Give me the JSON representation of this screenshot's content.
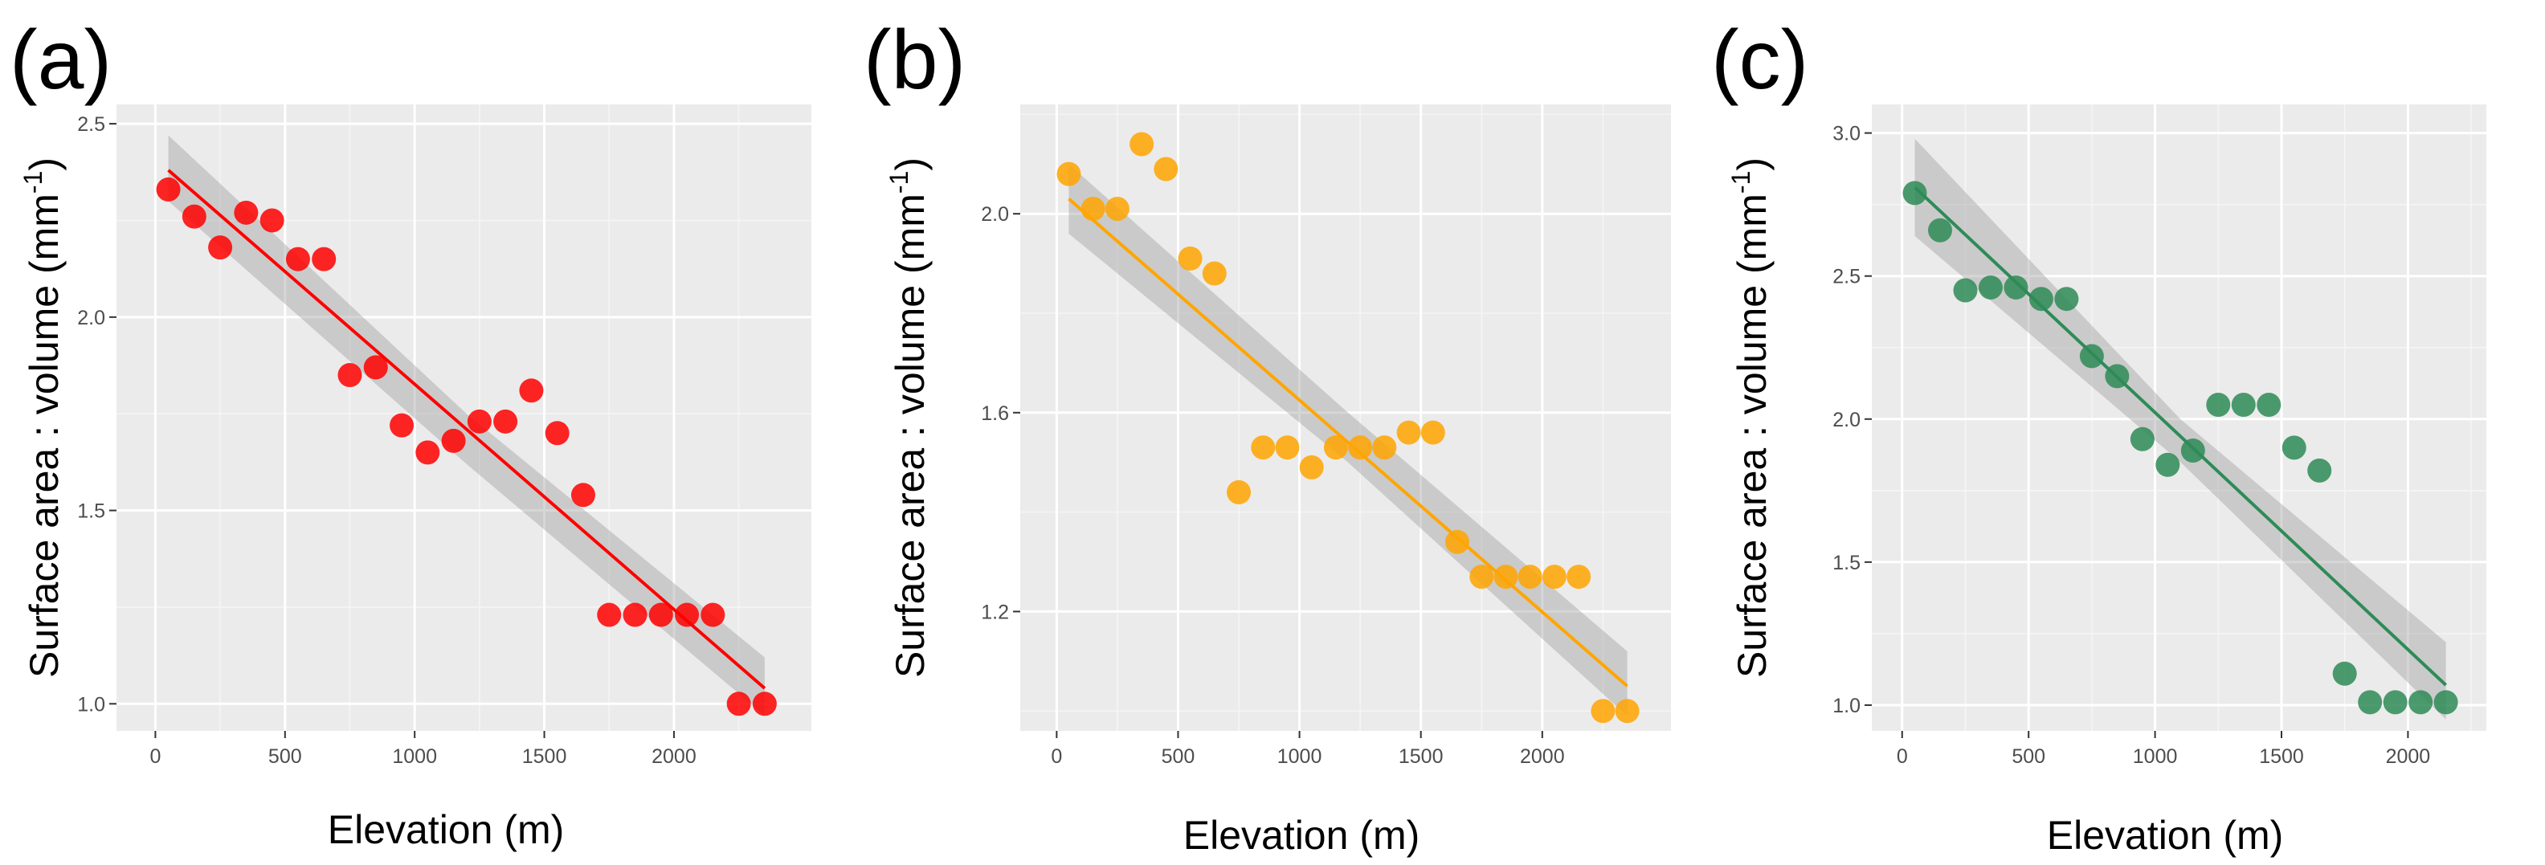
{
  "chart_data": [
    {
      "type": "scatter",
      "panel_label": "(a)",
      "xlabel": "Elevation (m)",
      "ylabel": {
        "main": "Surface area : volume (mm",
        "sup": "-1",
        "close": ")"
      },
      "xlim": [
        -150,
        2530
      ],
      "ylim": [
        0.93,
        2.55
      ],
      "x_ticks": [
        0,
        500,
        1000,
        1500,
        2000
      ],
      "x_tick_labels": [
        "0",
        "500",
        "1000",
        "1500",
        "2000"
      ],
      "y_ticks": [
        1.0,
        1.5,
        2.0,
        2.5
      ],
      "y_tick_labels": [
        "1.0",
        "1.5",
        "2.0",
        "2.5"
      ],
      "color": "#ff0000",
      "trend": {
        "x": [
          50,
          2350
        ],
        "y": [
          2.38,
          1.04
        ]
      },
      "band": {
        "lower": [
          2.3,
          1.62,
          0.97
        ],
        "upper": [
          2.47,
          1.75,
          1.12
        ]
      },
      "series": [
        {
          "name": "(a)",
          "x": [
            50,
            150,
            250,
            350,
            450,
            550,
            650,
            750,
            850,
            950,
            1050,
            1150,
            1250,
            1350,
            1450,
            1550,
            1650,
            1750,
            1850,
            1950,
            2050,
            2150,
            2250,
            2350
          ],
          "y": [
            2.33,
            2.26,
            2.18,
            2.27,
            2.25,
            2.15,
            2.15,
            1.85,
            1.87,
            1.72,
            1.65,
            1.68,
            1.73,
            1.73,
            1.81,
            1.7,
            1.54,
            1.23,
            1.23,
            1.23,
            1.23,
            1.23,
            1.0,
            1.0
          ]
        }
      ]
    },
    {
      "type": "scatter",
      "panel_label": "(b)",
      "xlabel": "Elevation (m)",
      "ylabel": {
        "main": "Surface area : volume (mm",
        "sup": "-1",
        "close": ")"
      },
      "xlim": [
        -150,
        2530
      ],
      "ylim": [
        0.96,
        2.22
      ],
      "x_ticks": [
        0,
        500,
        1000,
        1500,
        2000
      ],
      "x_tick_labels": [
        "0",
        "500",
        "1000",
        "1500",
        "2000"
      ],
      "y_ticks": [
        1.2,
        1.6,
        2.0
      ],
      "y_tick_labels": [
        "1.2",
        "1.6",
        "2.0"
      ],
      "color": "#ffa500",
      "trend": {
        "x": [
          50,
          2350
        ],
        "y": [
          2.03,
          1.05
        ]
      },
      "band": {
        "lower": [
          1.96,
          1.5,
          0.99
        ],
        "upper": [
          2.1,
          1.6,
          1.12
        ]
      },
      "series": [
        {
          "name": "(b)",
          "x": [
            50,
            150,
            250,
            350,
            450,
            550,
            650,
            750,
            850,
            950,
            1050,
            1150,
            1250,
            1350,
            1450,
            1550,
            1650,
            1750,
            1850,
            1950,
            2050,
            2150,
            2250,
            2350
          ],
          "y": [
            2.08,
            2.01,
            2.01,
            2.14,
            2.09,
            1.91,
            1.88,
            1.44,
            1.53,
            1.53,
            1.49,
            1.53,
            1.53,
            1.53,
            1.56,
            1.56,
            1.34,
            1.27,
            1.27,
            1.27,
            1.27,
            1.27,
            1.0,
            1.0
          ]
        }
      ]
    },
    {
      "type": "scatter",
      "panel_label": "(c)",
      "xlabel": "Elevation (m)",
      "ylabel": {
        "main": "Surface area : volume (mm",
        "sup": "-1",
        "close": ")"
      },
      "xlim": [
        -120,
        2310
      ],
      "ylim": [
        0.91,
        3.1
      ],
      "x_ticks": [
        0,
        500,
        1000,
        1500,
        2000
      ],
      "x_tick_labels": [
        "0",
        "500",
        "1000",
        "1500",
        "2000"
      ],
      "y_ticks": [
        1.0,
        1.5,
        2.0,
        2.5,
        3.0
      ],
      "y_tick_labels": [
        "1.0",
        "1.5",
        "2.0",
        "2.5",
        "3.0"
      ],
      "color": "#2e8b57",
      "trend": {
        "x": [
          50,
          2150
        ],
        "y": [
          2.81,
          1.07
        ]
      },
      "band": {
        "lower": [
          2.64,
          1.85,
          0.95
        ],
        "upper": [
          2.98,
          2.0,
          1.22
        ]
      },
      "series": [
        {
          "name": "(c)",
          "x": [
            50,
            150,
            250,
            350,
            450,
            550,
            650,
            750,
            850,
            950,
            1050,
            1150,
            1250,
            1350,
            1450,
            1550,
            1650,
            1750,
            1850,
            1950,
            2050,
            2150
          ],
          "y": [
            2.79,
            2.66,
            2.45,
            2.46,
            2.46,
            2.42,
            2.42,
            2.22,
            2.15,
            1.93,
            1.84,
            1.89,
            2.05,
            2.05,
            2.05,
            1.9,
            1.82,
            1.11,
            1.01,
            1.01,
            1.01,
            1.01
          ]
        }
      ]
    }
  ]
}
